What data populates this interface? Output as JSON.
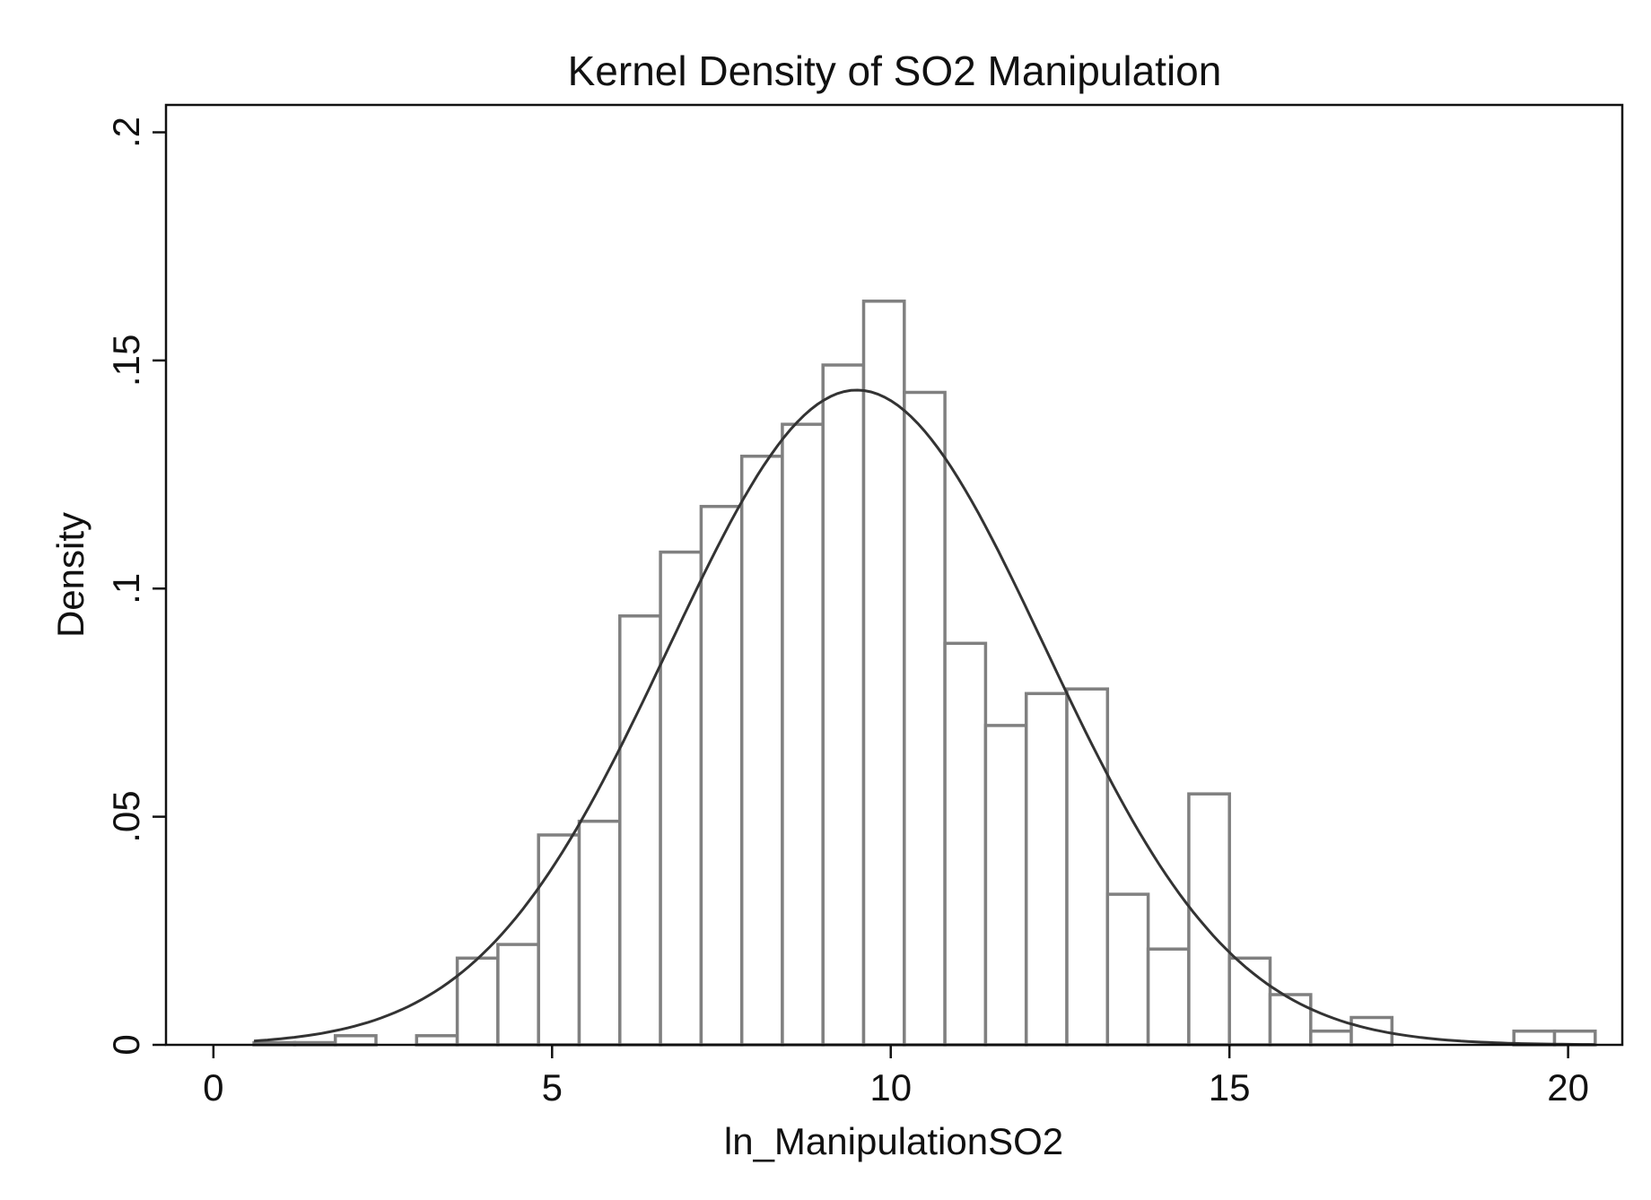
{
  "chart_data": {
    "type": "bar",
    "title": "Kernel Density of SO2 Manipulation",
    "xlabel": "ln_ManipulationSO2",
    "ylabel": "Density",
    "xlim": [
      -0.7,
      20.8
    ],
    "ylim": [
      0,
      0.206
    ],
    "x_ticks": [
      0,
      5,
      10,
      15,
      20
    ],
    "x_tick_labels": [
      "0",
      "5",
      "10",
      "15",
      "20"
    ],
    "y_ticks": [
      0,
      0.05,
      0.1,
      0.15,
      0.2
    ],
    "y_tick_labels": [
      "0",
      ".05",
      ".1",
      ".15",
      ".2"
    ],
    "grid": false,
    "legend": "none",
    "bin_width": 0.6,
    "bins": [
      {
        "x0": 0.6,
        "x1": 1.2,
        "density": 0.0005
      },
      {
        "x0": 1.2,
        "x1": 1.8,
        "density": 0.0005
      },
      {
        "x0": 1.8,
        "x1": 2.4,
        "density": 0.002
      },
      {
        "x0": 3.0,
        "x1": 3.6,
        "density": 0.002
      },
      {
        "x0": 3.6,
        "x1": 4.2,
        "density": 0.019
      },
      {
        "x0": 4.2,
        "x1": 4.8,
        "density": 0.022
      },
      {
        "x0": 4.8,
        "x1": 5.4,
        "density": 0.046
      },
      {
        "x0": 5.4,
        "x1": 6.0,
        "density": 0.049
      },
      {
        "x0": 6.0,
        "x1": 6.6,
        "density": 0.094
      },
      {
        "x0": 6.6,
        "x1": 7.2,
        "density": 0.108
      },
      {
        "x0": 7.2,
        "x1": 7.8,
        "density": 0.118
      },
      {
        "x0": 7.8,
        "x1": 8.4,
        "density": 0.129
      },
      {
        "x0": 8.4,
        "x1": 9.0,
        "density": 0.136
      },
      {
        "x0": 9.0,
        "x1": 9.6,
        "density": 0.149
      },
      {
        "x0": 9.6,
        "x1": 10.2,
        "density": 0.163
      },
      {
        "x0": 10.2,
        "x1": 10.8,
        "density": 0.143
      },
      {
        "x0": 10.8,
        "x1": 11.4,
        "density": 0.088
      },
      {
        "x0": 11.4,
        "x1": 12.0,
        "density": 0.07
      },
      {
        "x0": 12.0,
        "x1": 12.6,
        "density": 0.077
      },
      {
        "x0": 12.6,
        "x1": 13.2,
        "density": 0.078
      },
      {
        "x0": 13.2,
        "x1": 13.8,
        "density": 0.033
      },
      {
        "x0": 13.8,
        "x1": 14.4,
        "density": 0.021
      },
      {
        "x0": 14.4,
        "x1": 15.0,
        "density": 0.055
      },
      {
        "x0": 15.0,
        "x1": 15.6,
        "density": 0.019
      },
      {
        "x0": 15.6,
        "x1": 16.2,
        "density": 0.011
      },
      {
        "x0": 16.2,
        "x1": 16.8,
        "density": 0.003
      },
      {
        "x0": 16.8,
        "x1": 17.4,
        "density": 0.006
      },
      {
        "x0": 19.2,
        "x1": 19.8,
        "density": 0.003
      },
      {
        "x0": 19.8,
        "x1": 20.4,
        "density": 0.003
      }
    ],
    "density_curve": {
      "type": "line",
      "x_range": [
        0.6,
        20.4
      ],
      "mean": 9.5,
      "sd": 2.78,
      "peak": 0.1435
    }
  }
}
